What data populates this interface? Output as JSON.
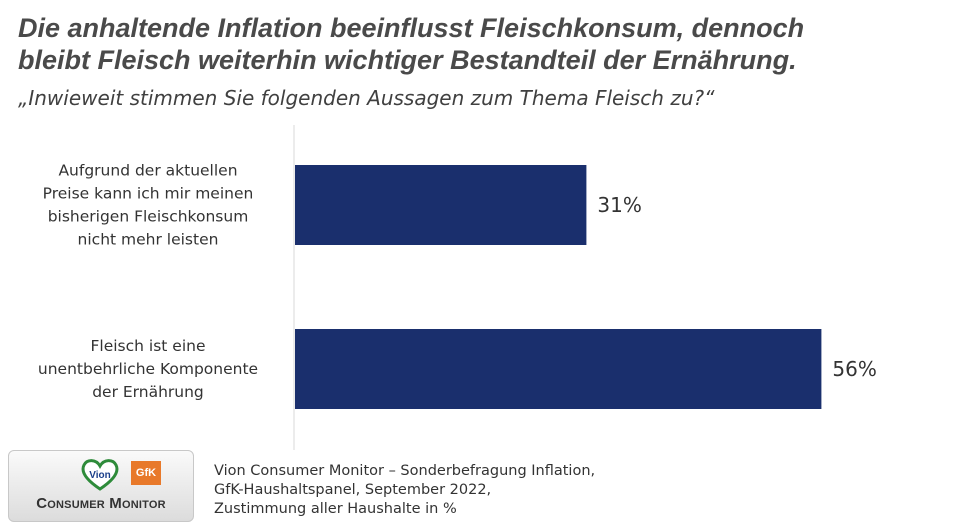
{
  "title_line1": "Die anhaltende Inflation beeinflusst Fleischkonsum, dennoch",
  "title_line2": "bleibt Fleisch weiterhin wichtiger Bestandteil der Ernährung.",
  "subtitle": "„Inwieweit stimmen Sie folgenden Aussagen zum Thema Fleisch zu?“",
  "chart_data": {
    "type": "bar",
    "orientation": "horizontal",
    "categories": [
      [
        "Aufgrund der aktuellen",
        "Preise kann ich mir meinen",
        "bisherigen Fleischkonsum",
        "nicht mehr leisten"
      ],
      [
        "Fleisch ist eine",
        "unentbehrliche Komponente",
        "der Ernährung"
      ]
    ],
    "values": [
      31,
      56
    ],
    "value_labels": [
      "31%",
      "56%"
    ],
    "xlim": [
      0,
      65
    ],
    "grid": false,
    "bar_color": "#1a2f6d"
  },
  "logo": {
    "brand_vion": "Vion",
    "brand_gfk": "GfK",
    "text": "Consumer Monitor"
  },
  "source": {
    "line1": "Vion Consumer Monitor – Sonderbefragung Inflation,",
    "line2": "GfK-Haushaltspanel, September 2022,",
    "line3": "Zustimmung aller Haushalte in %"
  }
}
